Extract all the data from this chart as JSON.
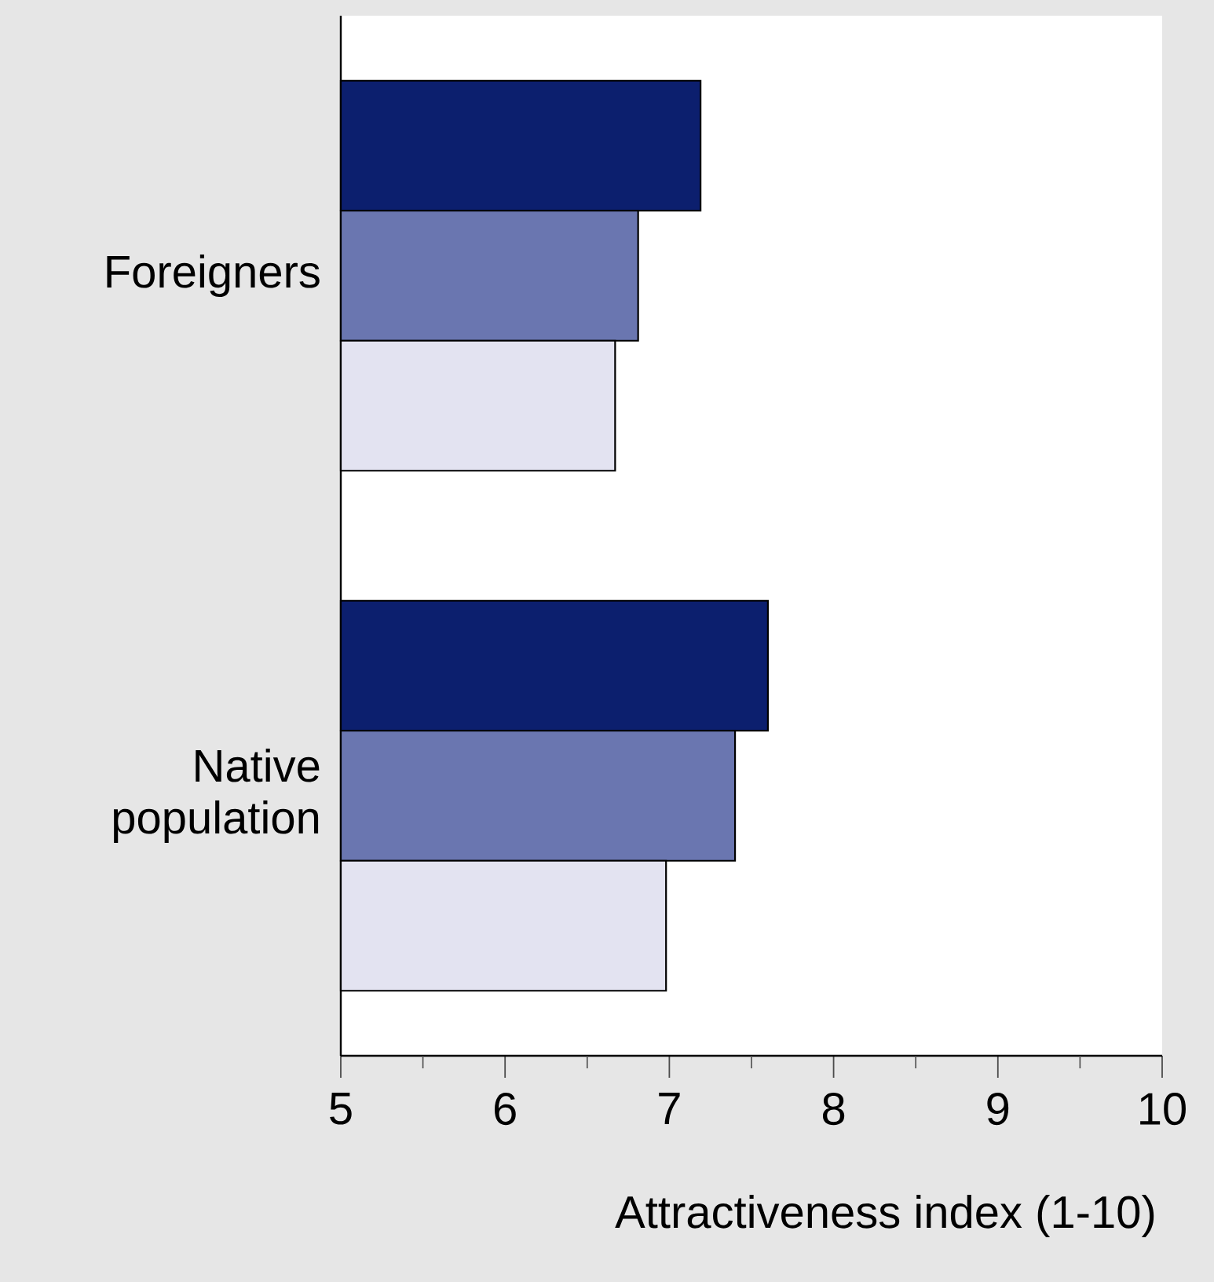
{
  "chart_data": {
    "type": "bar",
    "orientation": "horizontal",
    "xlabel": "Attractiveness index (1-10)",
    "categories": [
      "Foreigners",
      "Native population"
    ],
    "series": [
      {
        "color": "#0c1f6e",
        "values": [
          7.19,
          7.6
        ]
      },
      {
        "color": "#6a76b0",
        "values": [
          6.81,
          7.4
        ]
      },
      {
        "color": "#e3e3f1",
        "values": [
          6.67,
          6.98
        ]
      }
    ],
    "xlim": [
      5,
      10
    ],
    "xticks": [
      5,
      {
        "value": 5.5,
        "label": null
      },
      6,
      {
        "value": 6.5,
        "label": null
      },
      7,
      {
        "value": 7.5,
        "label": null
      },
      8,
      {
        "value": 8.5,
        "label": null
      },
      9,
      {
        "value": 9.5,
        "label": null
      },
      10
    ],
    "grid": false
  }
}
